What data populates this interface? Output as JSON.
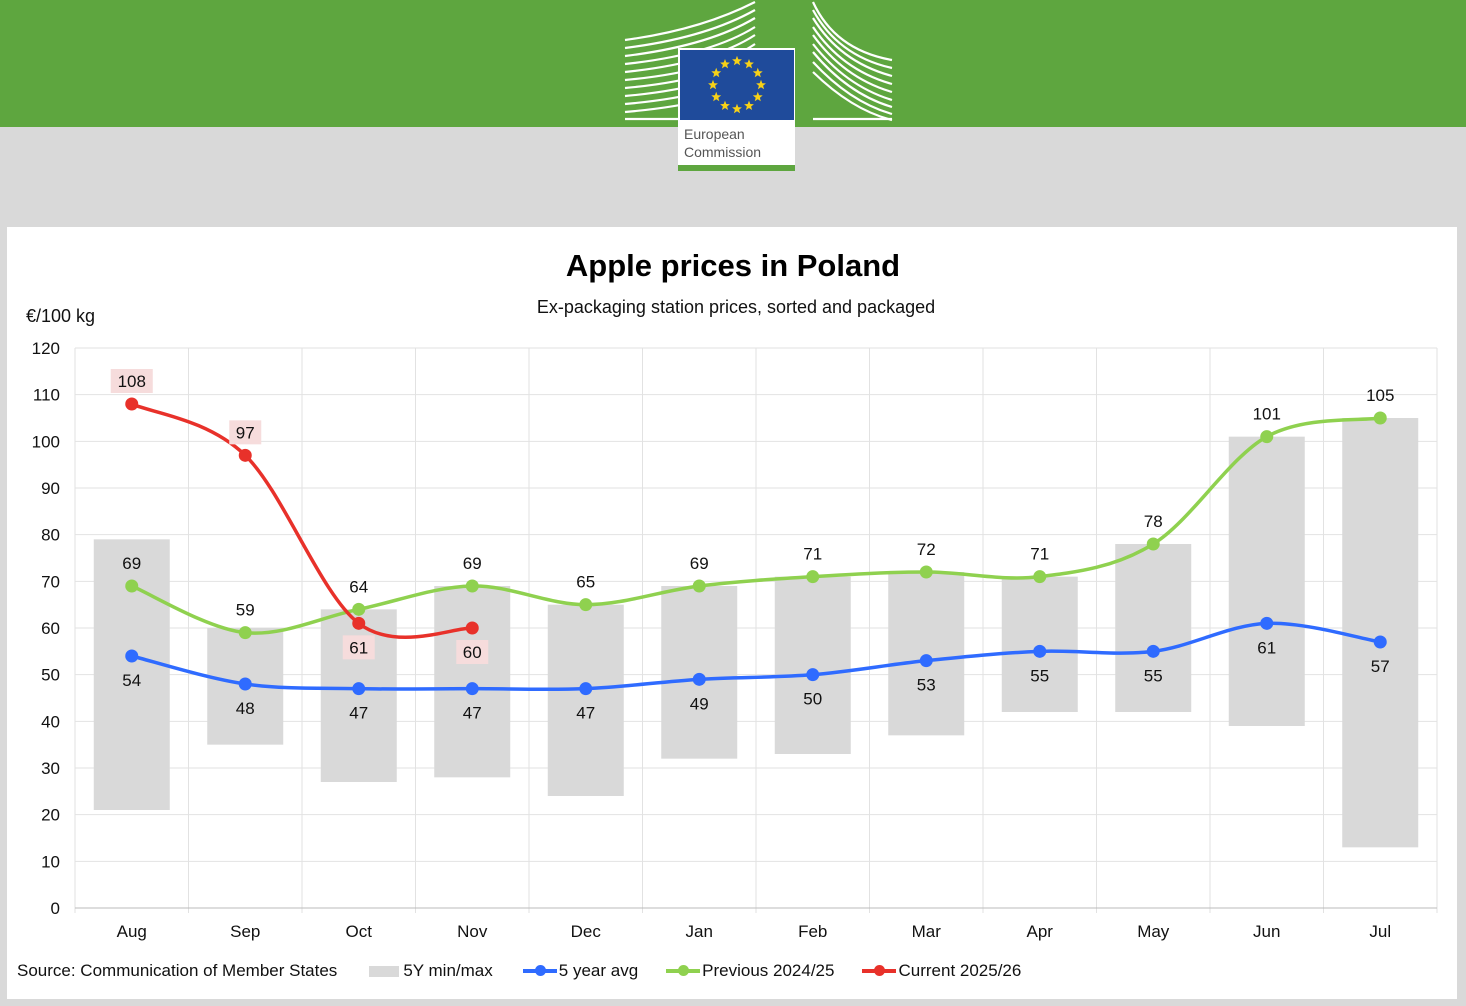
{
  "header": {
    "logo_text": "European Commission"
  },
  "chart_data": {
    "type": "line",
    "title": "Apple prices in Poland",
    "subtitle": "Ex-packaging station prices, sorted and packaged",
    "ylabel": "€/100 kg",
    "xlabel": "",
    "ylim": [
      0,
      120
    ],
    "yticks": [
      0,
      10,
      20,
      30,
      40,
      50,
      60,
      70,
      80,
      90,
      100,
      110,
      120
    ],
    "grid": true,
    "categories": [
      "Aug",
      "Sep",
      "Oct",
      "Nov",
      "Dec",
      "Jan",
      "Feb",
      "Mar",
      "Apr",
      "May",
      "Jun",
      "Jul"
    ],
    "range": {
      "name": "5Y min/max",
      "color": "#d9d9d9",
      "min": [
        21,
        35,
        27,
        28,
        24,
        32,
        33,
        37,
        42,
        42,
        39,
        13
      ],
      "max": [
        79,
        60,
        64,
        69,
        65,
        69,
        71,
        72,
        71,
        78,
        101,
        105
      ]
    },
    "series": [
      {
        "name": "5 year avg",
        "color": "#2f6bff",
        "label_pos": "below",
        "values": [
          54,
          48,
          47,
          47,
          47,
          49,
          50,
          53,
          55,
          55,
          61,
          57
        ]
      },
      {
        "name": "Previous 2024/25",
        "color": "#8fd14f",
        "label_pos": "above",
        "values": [
          69,
          59,
          64,
          69,
          65,
          69,
          71,
          72,
          71,
          78,
          101,
          105
        ]
      },
      {
        "name": "Current 2025/26",
        "color": "#e8312a",
        "label_pos": "mixed",
        "values": [
          108,
          97,
          61,
          60,
          null,
          null,
          null,
          null,
          null,
          null,
          null,
          null
        ]
      }
    ],
    "legend_position": "bottom",
    "source": "Source: Communication  of Member States"
  }
}
